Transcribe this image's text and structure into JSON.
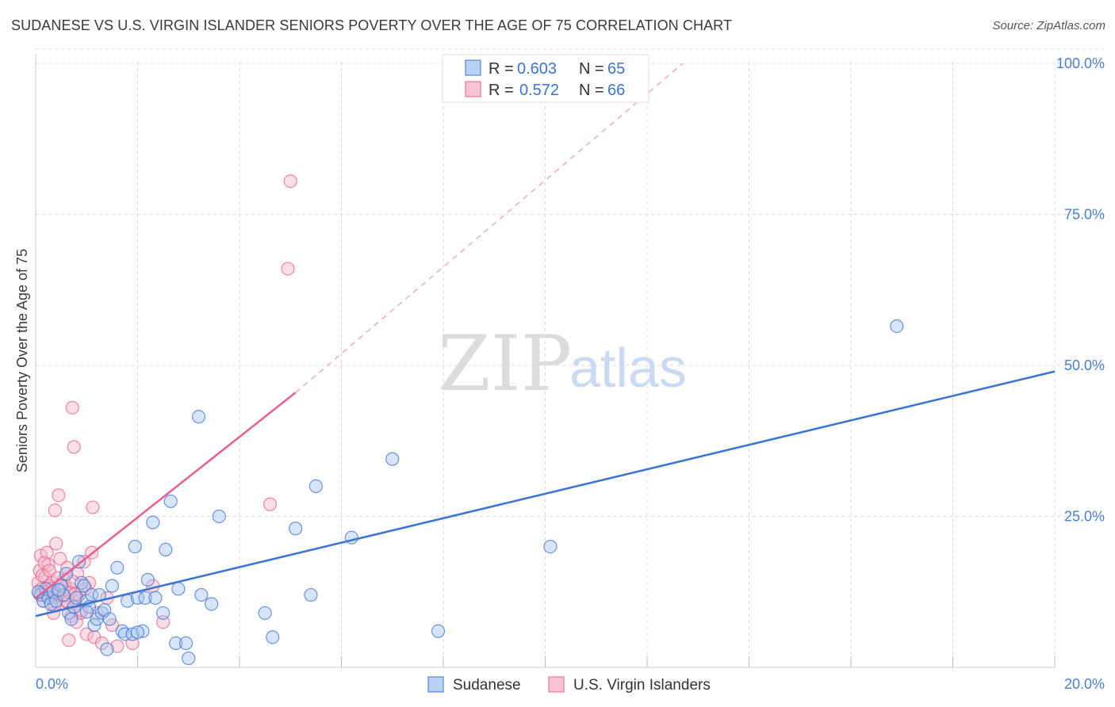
{
  "title": "SUDANESE VS U.S. VIRGIN ISLANDER SENIORS POVERTY OVER THE AGE OF 75 CORRELATION CHART",
  "source": "Source: ZipAtlas.com",
  "watermark": {
    "zip": "ZIP",
    "atlas": "atlas"
  },
  "colors": {
    "blue": "#3b74d1",
    "blue_fill": "#a9c6f0",
    "pink": "#e8608a",
    "pink_fill": "#f5b5c8",
    "grid": "#d8d8d8"
  },
  "legend": {
    "r_label": "R =",
    "n_label": "N =",
    "items": [
      {
        "r": "0.603",
        "n": "65"
      },
      {
        "r": "0.572",
        "n": "66"
      }
    ]
  },
  "chart_data": {
    "type": "scatter",
    "title": "SUDANESE VS U.S. VIRGIN ISLANDER SENIORS POVERTY OVER THE AGE OF 75 CORRELATION CHART",
    "xlabel": "",
    "ylabel": "Seniors Poverty Over the Age of 75",
    "xlim": [
      0,
      20
    ],
    "ylim": [
      0,
      100
    ],
    "x_tick_labels": [
      "0.0%",
      "20.0%"
    ],
    "y_ticks": [
      25,
      50,
      75,
      100
    ],
    "y_tick_labels": [
      "25.0%",
      "50.0%",
      "75.0%",
      "100.0%"
    ],
    "grid": true,
    "legend_position": "top-center",
    "series": [
      {
        "name": "Sudanese",
        "trend": {
          "x": [
            0,
            20
          ],
          "y": [
            8.5,
            49.0
          ],
          "style": "solid"
        },
        "points": [
          [
            0.1,
            12.0
          ],
          [
            0.15,
            11.0
          ],
          [
            0.2,
            13.0
          ],
          [
            0.25,
            11.5
          ],
          [
            0.3,
            10.5
          ],
          [
            0.35,
            12.5
          ],
          [
            0.4,
            11.0
          ],
          [
            0.5,
            13.5
          ],
          [
            0.55,
            12.0
          ],
          [
            0.6,
            15.5
          ],
          [
            0.65,
            9.0
          ],
          [
            0.7,
            8.0
          ],
          [
            0.75,
            10.0
          ],
          [
            0.8,
            11.5
          ],
          [
            0.85,
            17.5
          ],
          [
            0.9,
            14.0
          ],
          [
            0.95,
            13.5
          ],
          [
            1.0,
            11.0
          ],
          [
            1.05,
            10.0
          ],
          [
            1.1,
            12.0
          ],
          [
            1.15,
            7.0
          ],
          [
            1.2,
            8.0
          ],
          [
            1.25,
            12.0
          ],
          [
            1.3,
            9.0
          ],
          [
            1.35,
            9.5
          ],
          [
            1.4,
            3.0
          ],
          [
            1.45,
            8.0
          ],
          [
            1.5,
            13.5
          ],
          [
            1.6,
            16.5
          ],
          [
            1.7,
            6.0
          ],
          [
            1.75,
            5.5
          ],
          [
            1.8,
            11.0
          ],
          [
            1.9,
            5.5
          ],
          [
            1.95,
            20.0
          ],
          [
            2.0,
            11.5
          ],
          [
            2.1,
            6.0
          ],
          [
            2.15,
            11.5
          ],
          [
            2.2,
            14.5
          ],
          [
            2.3,
            24.0
          ],
          [
            2.35,
            11.5
          ],
          [
            2.5,
            9.0
          ],
          [
            2.55,
            19.5
          ],
          [
            2.65,
            27.5
          ],
          [
            2.75,
            4.0
          ],
          [
            2.8,
            13.0
          ],
          [
            2.95,
            4.0
          ],
          [
            3.0,
            1.5
          ],
          [
            3.2,
            41.5
          ],
          [
            3.25,
            12.0
          ],
          [
            3.45,
            10.5
          ],
          [
            3.6,
            25.0
          ],
          [
            4.5,
            9.0
          ],
          [
            4.65,
            5.0
          ],
          [
            5.1,
            23.0
          ],
          [
            5.4,
            12.0
          ],
          [
            5.5,
            30.0
          ],
          [
            6.2,
            21.5
          ],
          [
            7.0,
            34.5
          ],
          [
            7.9,
            6.0
          ],
          [
            10.1,
            20.0
          ],
          [
            16.9,
            56.5
          ],
          [
            0.05,
            12.5
          ],
          [
            0.45,
            12.8
          ],
          [
            1.0,
            9.2
          ],
          [
            2.0,
            5.8
          ]
        ]
      },
      {
        "name": "U.S. Virgin Islanders",
        "trend": {
          "x": [
            0,
            5.1
          ],
          "y": [
            11.5,
            45.5
          ],
          "style": "solid",
          "extended_x": [
            5.1,
            12.7
          ],
          "extended_y": [
            45.5,
            100
          ],
          "extended_style": "dashed"
        },
        "points": [
          [
            0.05,
            14.0
          ],
          [
            0.08,
            16.0
          ],
          [
            0.1,
            18.5
          ],
          [
            0.12,
            13.0
          ],
          [
            0.15,
            11.0
          ],
          [
            0.18,
            15.0
          ],
          [
            0.2,
            12.5
          ],
          [
            0.22,
            19.0
          ],
          [
            0.25,
            17.0
          ],
          [
            0.28,
            13.5
          ],
          [
            0.3,
            11.5
          ],
          [
            0.32,
            14.0
          ],
          [
            0.35,
            9.0
          ],
          [
            0.38,
            26.0
          ],
          [
            0.4,
            20.5
          ],
          [
            0.42,
            12.0
          ],
          [
            0.45,
            28.5
          ],
          [
            0.48,
            18.0
          ],
          [
            0.5,
            10.5
          ],
          [
            0.55,
            14.5
          ],
          [
            0.6,
            11.0
          ],
          [
            0.62,
            16.5
          ],
          [
            0.65,
            4.5
          ],
          [
            0.68,
            13.0
          ],
          [
            0.7,
            8.5
          ],
          [
            0.72,
            43.0
          ],
          [
            0.75,
            36.5
          ],
          [
            0.78,
            11.0
          ],
          [
            0.8,
            7.5
          ],
          [
            0.82,
            15.5
          ],
          [
            0.85,
            12.0
          ],
          [
            0.9,
            9.5
          ],
          [
            0.95,
            17.5
          ],
          [
            1.0,
            5.5
          ],
          [
            1.05,
            14.0
          ],
          [
            1.1,
            19.0
          ],
          [
            1.12,
            26.5
          ],
          [
            1.15,
            5.0
          ],
          [
            1.2,
            9.0
          ],
          [
            1.3,
            4.0
          ],
          [
            1.4,
            11.5
          ],
          [
            1.5,
            7.0
          ],
          [
            1.6,
            3.5
          ],
          [
            1.9,
            4.0
          ],
          [
            2.3,
            13.5
          ],
          [
            2.5,
            7.5
          ],
          [
            4.6,
            27.0
          ],
          [
            4.95,
            66.0
          ],
          [
            5.0,
            80.5
          ],
          [
            0.07,
            12.2
          ],
          [
            0.13,
            15.2
          ],
          [
            0.17,
            17.3
          ],
          [
            0.23,
            11.8
          ],
          [
            0.27,
            16.0
          ],
          [
            0.33,
            13.1
          ],
          [
            0.37,
            10.2
          ],
          [
            0.43,
            14.8
          ],
          [
            0.47,
            12.9
          ],
          [
            0.53,
            11.9
          ],
          [
            0.57,
            13.4
          ],
          [
            0.63,
            10.8
          ],
          [
            0.67,
            12.4
          ],
          [
            0.73,
            14.2
          ],
          [
            0.77,
            12.1
          ],
          [
            0.88,
            9.0
          ],
          [
            0.98,
            13.0
          ]
        ]
      }
    ]
  }
}
